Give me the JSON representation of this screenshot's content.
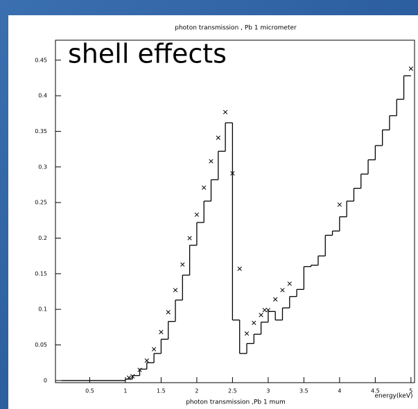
{
  "chart_data": {
    "type": "histogram",
    "title": "photon transmission , Pb 1 micrometer",
    "xlabel": "photon transmission ,Pb 1 mum",
    "xunit_label": "energy(keV)",
    "annotation": "shell effects",
    "annotation_color": "#e0197d",
    "color": "#000000",
    "bins": [
      0.1,
      1.0,
      1.1,
      1.2,
      1.3,
      1.4,
      1.5,
      1.6,
      1.7,
      1.8,
      1.9,
      2.0,
      2.1,
      2.2,
      2.3,
      2.4,
      2.5,
      2.6,
      2.7,
      2.8,
      2.9,
      3.0,
      3.1,
      3.2,
      3.3,
      3.4,
      3.5,
      3.6,
      3.7,
      3.8,
      3.9,
      4.0,
      4.1,
      4.2,
      4.3,
      4.4,
      4.5,
      4.6,
      4.7,
      4.8,
      4.9,
      5.0
    ],
    "counts": [
      0,
      0.002,
      0.007,
      0.016,
      0.025,
      0.038,
      0.058,
      0.083,
      0.113,
      0.148,
      0.19,
      0.222,
      0.252,
      0.282,
      0.322,
      0.362,
      0.085,
      0.038,
      0.052,
      0.065,
      0.082,
      0.097,
      0.085,
      0.102,
      0.118,
      0.128,
      0.16,
      0.162,
      0.175,
      0.204,
      0.21,
      0.23,
      0.252,
      0.27,
      0.29,
      0.31,
      0.33,
      0.352,
      0.372,
      0.395,
      0.428
    ],
    "points": {
      "x": [
        1.05,
        1.1,
        1.2,
        1.3,
        1.4,
        1.5,
        1.6,
        1.7,
        1.8,
        1.9,
        2.0,
        2.1,
        2.2,
        2.3,
        2.4,
        2.5,
        2.6,
        2.7,
        2.8,
        2.9,
        2.95,
        3.0,
        3.1,
        3.2,
        3.3,
        4.0,
        5.0
      ],
      "y": [
        0.004,
        0.006,
        0.015,
        0.028,
        0.044,
        0.068,
        0.096,
        0.127,
        0.163,
        0.2,
        0.233,
        0.271,
        0.308,
        0.341,
        0.377,
        0.291,
        0.157,
        0.066,
        0.081,
        0.092,
        0.099,
        0.099,
        0.114,
        0.127,
        0.136,
        0.247,
        0.438
      ]
    },
    "xlim": [
      0.02,
      5.05
    ],
    "ylim": [
      -0.003,
      0.478
    ],
    "xticks": [
      0.5,
      1,
      1.5,
      2,
      2.5,
      3,
      3.5,
      4,
      4.5,
      5
    ],
    "yticks": [
      0,
      0.05,
      0.1,
      0.15,
      0.2,
      0.25,
      0.3,
      0.35,
      0.4,
      0.45
    ]
  }
}
